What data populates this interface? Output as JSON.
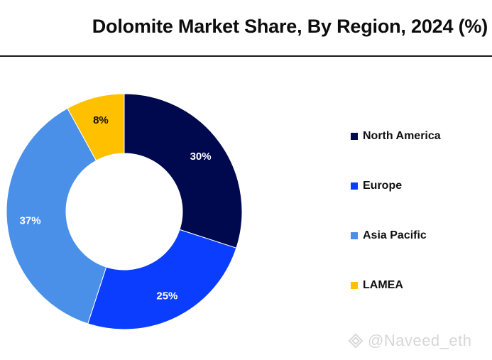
{
  "title": "Dolomite Market Share, By Region, 2024 (%)",
  "chart_data": {
    "type": "pie",
    "variant": "donut",
    "categories": [
      "North America",
      "Europe",
      "Asia Pacific",
      "LAMEA"
    ],
    "values": [
      30,
      25,
      37,
      8
    ],
    "labels": [
      "30%",
      "25%",
      "37%",
      "8%"
    ],
    "colors": [
      "#00084e",
      "#0b3dff",
      "#4a90e8",
      "#ffc000"
    ],
    "label_colors": [
      "#ffffff",
      "#ffffff",
      "#ffffff",
      "#111111"
    ],
    "legend": {
      "position": "right",
      "entries": [
        "North America",
        "Europe",
        "Asia Pacific",
        "LAMEA"
      ]
    }
  },
  "watermark": "@Naveed_eth"
}
